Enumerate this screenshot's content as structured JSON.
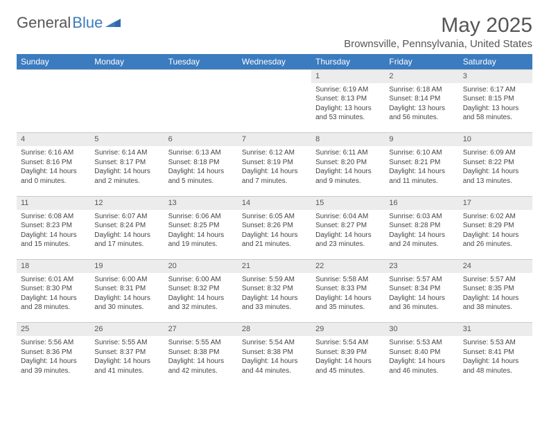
{
  "brand": {
    "general": "General",
    "blue": "Blue"
  },
  "header": {
    "title": "May 2025",
    "location": "Brownsville, Pennsylvania, United States"
  },
  "columns": [
    "Sunday",
    "Monday",
    "Tuesday",
    "Wednesday",
    "Thursday",
    "Friday",
    "Saturday"
  ],
  "colors": {
    "header_bg": "#3b7bbf",
    "header_text": "#ffffff",
    "daynum_bg": "#ececec",
    "text": "#444444",
    "divider": "#c9c9c9"
  },
  "weeks": [
    [
      null,
      null,
      null,
      null,
      {
        "n": "1",
        "sunrise": "6:19 AM",
        "sunset": "8:13 PM",
        "daylight": "13 hours and 53 minutes."
      },
      {
        "n": "2",
        "sunrise": "6:18 AM",
        "sunset": "8:14 PM",
        "daylight": "13 hours and 56 minutes."
      },
      {
        "n": "3",
        "sunrise": "6:17 AM",
        "sunset": "8:15 PM",
        "daylight": "13 hours and 58 minutes."
      }
    ],
    [
      {
        "n": "4",
        "sunrise": "6:16 AM",
        "sunset": "8:16 PM",
        "daylight": "14 hours and 0 minutes."
      },
      {
        "n": "5",
        "sunrise": "6:14 AM",
        "sunset": "8:17 PM",
        "daylight": "14 hours and 2 minutes."
      },
      {
        "n": "6",
        "sunrise": "6:13 AM",
        "sunset": "8:18 PM",
        "daylight": "14 hours and 5 minutes."
      },
      {
        "n": "7",
        "sunrise": "6:12 AM",
        "sunset": "8:19 PM",
        "daylight": "14 hours and 7 minutes."
      },
      {
        "n": "8",
        "sunrise": "6:11 AM",
        "sunset": "8:20 PM",
        "daylight": "14 hours and 9 minutes."
      },
      {
        "n": "9",
        "sunrise": "6:10 AM",
        "sunset": "8:21 PM",
        "daylight": "14 hours and 11 minutes."
      },
      {
        "n": "10",
        "sunrise": "6:09 AM",
        "sunset": "8:22 PM",
        "daylight": "14 hours and 13 minutes."
      }
    ],
    [
      {
        "n": "11",
        "sunrise": "6:08 AM",
        "sunset": "8:23 PM",
        "daylight": "14 hours and 15 minutes."
      },
      {
        "n": "12",
        "sunrise": "6:07 AM",
        "sunset": "8:24 PM",
        "daylight": "14 hours and 17 minutes."
      },
      {
        "n": "13",
        "sunrise": "6:06 AM",
        "sunset": "8:25 PM",
        "daylight": "14 hours and 19 minutes."
      },
      {
        "n": "14",
        "sunrise": "6:05 AM",
        "sunset": "8:26 PM",
        "daylight": "14 hours and 21 minutes."
      },
      {
        "n": "15",
        "sunrise": "6:04 AM",
        "sunset": "8:27 PM",
        "daylight": "14 hours and 23 minutes."
      },
      {
        "n": "16",
        "sunrise": "6:03 AM",
        "sunset": "8:28 PM",
        "daylight": "14 hours and 24 minutes."
      },
      {
        "n": "17",
        "sunrise": "6:02 AM",
        "sunset": "8:29 PM",
        "daylight": "14 hours and 26 minutes."
      }
    ],
    [
      {
        "n": "18",
        "sunrise": "6:01 AM",
        "sunset": "8:30 PM",
        "daylight": "14 hours and 28 minutes."
      },
      {
        "n": "19",
        "sunrise": "6:00 AM",
        "sunset": "8:31 PM",
        "daylight": "14 hours and 30 minutes."
      },
      {
        "n": "20",
        "sunrise": "6:00 AM",
        "sunset": "8:32 PM",
        "daylight": "14 hours and 32 minutes."
      },
      {
        "n": "21",
        "sunrise": "5:59 AM",
        "sunset": "8:32 PM",
        "daylight": "14 hours and 33 minutes."
      },
      {
        "n": "22",
        "sunrise": "5:58 AM",
        "sunset": "8:33 PM",
        "daylight": "14 hours and 35 minutes."
      },
      {
        "n": "23",
        "sunrise": "5:57 AM",
        "sunset": "8:34 PM",
        "daylight": "14 hours and 36 minutes."
      },
      {
        "n": "24",
        "sunrise": "5:57 AM",
        "sunset": "8:35 PM",
        "daylight": "14 hours and 38 minutes."
      }
    ],
    [
      {
        "n": "25",
        "sunrise": "5:56 AM",
        "sunset": "8:36 PM",
        "daylight": "14 hours and 39 minutes."
      },
      {
        "n": "26",
        "sunrise": "5:55 AM",
        "sunset": "8:37 PM",
        "daylight": "14 hours and 41 minutes."
      },
      {
        "n": "27",
        "sunrise": "5:55 AM",
        "sunset": "8:38 PM",
        "daylight": "14 hours and 42 minutes."
      },
      {
        "n": "28",
        "sunrise": "5:54 AM",
        "sunset": "8:38 PM",
        "daylight": "14 hours and 44 minutes."
      },
      {
        "n": "29",
        "sunrise": "5:54 AM",
        "sunset": "8:39 PM",
        "daylight": "14 hours and 45 minutes."
      },
      {
        "n": "30",
        "sunrise": "5:53 AM",
        "sunset": "8:40 PM",
        "daylight": "14 hours and 46 minutes."
      },
      {
        "n": "31",
        "sunrise": "5:53 AM",
        "sunset": "8:41 PM",
        "daylight": "14 hours and 48 minutes."
      }
    ]
  ],
  "labels": {
    "sunrise": "Sunrise: ",
    "sunset": "Sunset: ",
    "daylight": "Daylight: "
  }
}
